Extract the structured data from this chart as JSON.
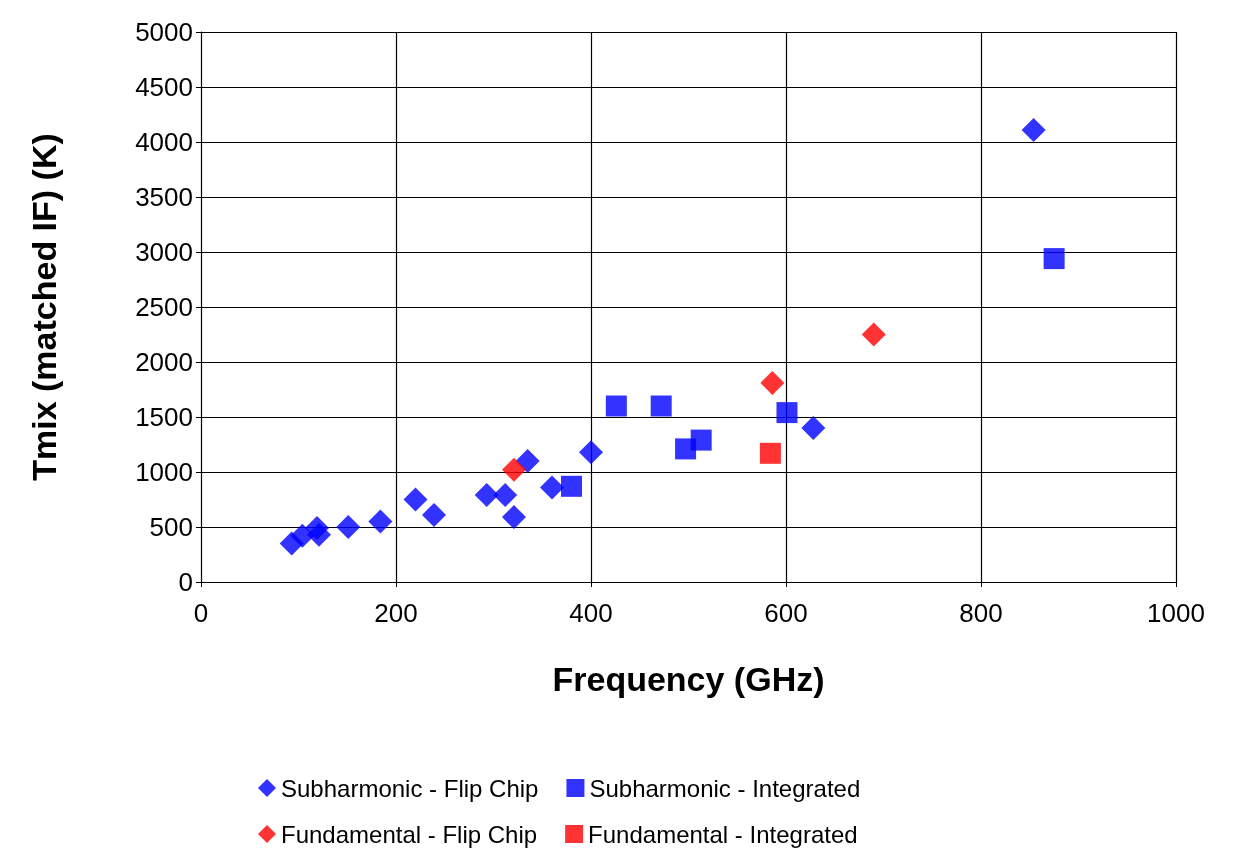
{
  "chart_data": {
    "type": "scatter",
    "xlabel": "Frequency (GHz)",
    "ylabel": "Tmix (matched IF) (K)",
    "xlim": [
      0,
      1000
    ],
    "xticks": [
      0,
      200,
      400,
      600,
      800,
      1000
    ],
    "ylim": [
      0,
      5000
    ],
    "yticks": [
      0,
      500,
      1000,
      1500,
      2000,
      2500,
      3000,
      3500,
      4000,
      4500,
      5000
    ],
    "grid": true,
    "legend": "bottom",
    "series": [
      {
        "name": "Subharmonic - Flip Chip",
        "color": "#0000ff",
        "marker": "diamond",
        "x": [
          93,
          104,
          119,
          121,
          151,
          184,
          220,
          239,
          293,
          312,
          321,
          335,
          360,
          400,
          628,
          854
        ],
        "values": [
          350,
          420,
          490,
          430,
          500,
          550,
          750,
          610,
          790,
          790,
          590,
          1100,
          860,
          1180,
          1400,
          4110
        ]
      },
      {
        "name": "Subharmonic - Integrated",
        "color": "#0000ff",
        "marker": "square",
        "x": [
          380,
          426,
          472,
          497,
          513,
          601,
          875
        ],
        "values": [
          870,
          1600,
          1600,
          1210,
          1290,
          1540,
          2940
        ]
      },
      {
        "name": "Fundamental - Flip Chip",
        "color": "#ff0000",
        "marker": "diamond",
        "x": [
          321,
          586,
          690
        ],
        "values": [
          1020,
          1810,
          2250
        ]
      },
      {
        "name": "Fundamental - Integrated",
        "color": "#ff0000",
        "marker": "square",
        "x": [
          584
        ],
        "values": [
          1170
        ]
      }
    ]
  }
}
